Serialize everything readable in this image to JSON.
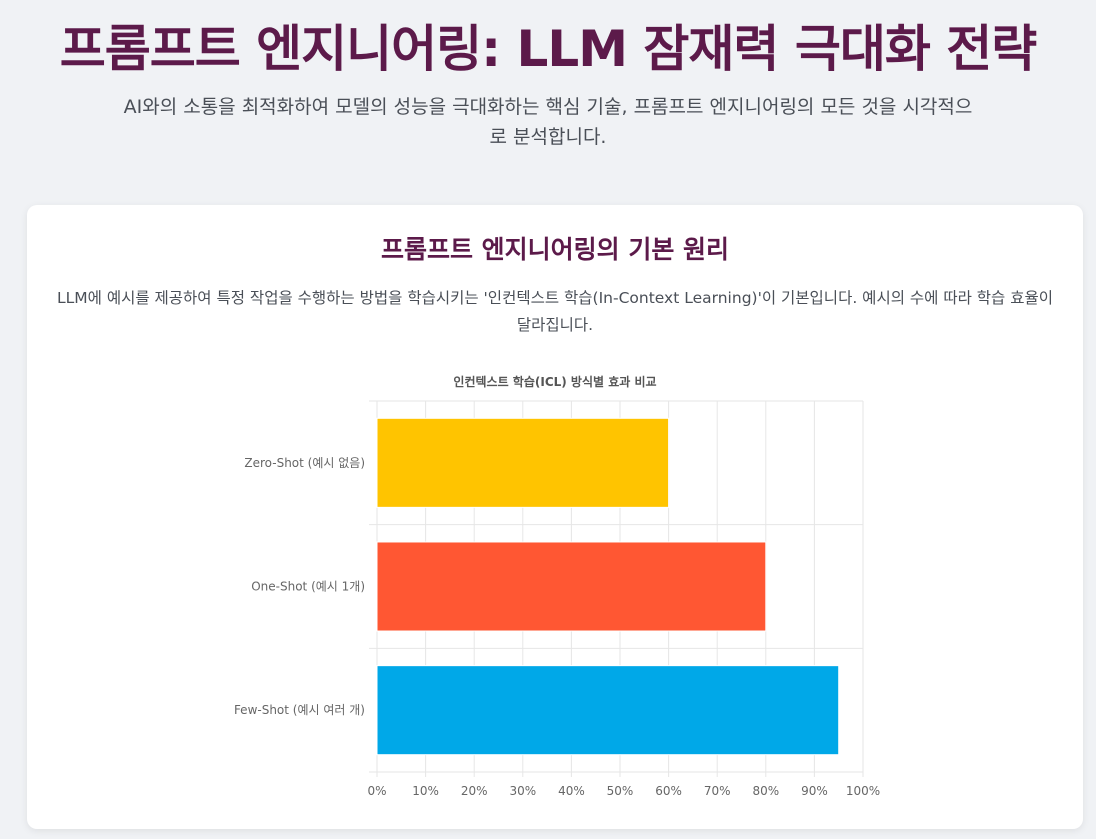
{
  "header": {
    "title": "프롬프트 엔지니어링: LLM 잠재력 극대화 전략",
    "subtitle": "AI와의 소통을 최적화하여 모델의 성능을 극대화하는 핵심 기술, 프롬프트 엔지니어링의 모든 것을 시각적으로 분석합니다."
  },
  "section": {
    "title": "프롬프트 엔지니어링의 기본 원리",
    "description": "LLM에 예시를 제공하여 특정 작업을 수행하는 방법을 학습시키는 '인컨텍스트 학습(In-Context Learning)'이 기본입니다. 예시의 수에 따라 학습 효율이 달라집니다."
  },
  "colors": {
    "title": "#5c1a4a",
    "bars": [
      "#ffc400",
      "#ff5733",
      "#00a8e8"
    ]
  },
  "chart_data": {
    "type": "bar",
    "orientation": "horizontal",
    "title": "인컨텍스트 학습(ICL) 방식별 효과 비교",
    "categories": [
      "Zero-Shot (예시 없음)",
      "One-Shot (예시 1개)",
      "Few-Shot (예시 여러 개)"
    ],
    "values": [
      60,
      80,
      95
    ],
    "xlim": [
      0,
      100
    ],
    "x_ticks": [
      "0%",
      "10%",
      "20%",
      "30%",
      "40%",
      "50%",
      "60%",
      "70%",
      "80%",
      "90%",
      "100%"
    ],
    "xlabel": "",
    "ylabel": "",
    "grid": true,
    "legend": "none"
  }
}
